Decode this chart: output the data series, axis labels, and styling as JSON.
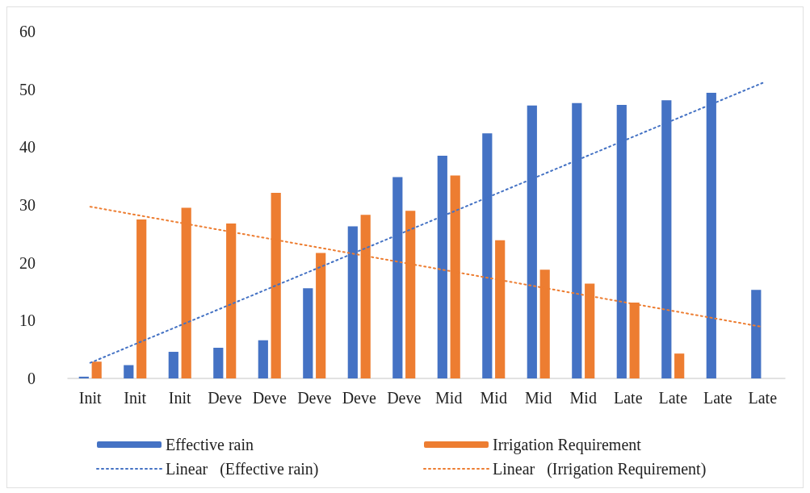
{
  "chart_data": {
    "type": "bar",
    "categories": [
      "Init",
      "Init",
      "Init",
      "Deve",
      "Deve",
      "Deve",
      "Deve",
      "Deve",
      "Mid",
      "Mid",
      "Mid",
      "Mid",
      "Late",
      "Late",
      "Late",
      "Late"
    ],
    "series": [
      {
        "name": "Effective rain",
        "color": "#4472c4",
        "values": [
          0.3,
          2.3,
          4.6,
          5.3,
          6.6,
          15.6,
          26.3,
          34.8,
          38.5,
          42.4,
          47.2,
          47.6,
          47.3,
          48.1,
          49.4,
          15.3
        ]
      },
      {
        "name": "Irrigation Requirement",
        "color": "#ed7d31",
        "values": [
          2.9,
          27.5,
          29.5,
          26.8,
          32.1,
          21.7,
          28.3,
          29.0,
          35.1,
          23.9,
          18.8,
          16.4,
          13.1,
          4.3,
          null,
          null
        ]
      },
      {
        "name": "Linear   (Effective rain)",
        "type": "line",
        "color": "#4472c4",
        "line_style": "dotted",
        "marker": "none",
        "values": [
          2.7,
          null,
          null,
          null,
          null,
          null,
          null,
          null,
          null,
          null,
          null,
          null,
          null,
          null,
          null,
          51.1
        ]
      },
      {
        "name": "Linear   (Irrigation Requirement)",
        "type": "line",
        "color": "#ed7d31",
        "line_style": "dotted",
        "marker": "none",
        "values": [
          29.7,
          null,
          null,
          null,
          null,
          null,
          null,
          null,
          null,
          null,
          null,
          null,
          null,
          null,
          null,
          8.9
        ]
      }
    ],
    "ylim": [
      0,
      60
    ],
    "yticks": [
      0,
      10,
      20,
      30,
      40,
      50,
      60
    ],
    "grid": false,
    "legend": "bottom"
  }
}
